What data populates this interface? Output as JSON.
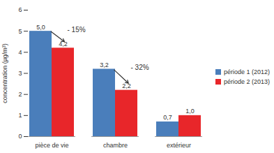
{
  "chart_data": {
    "type": "bar",
    "y_label": "concentration (µg/m³)",
    "categories": [
      "pièce de vie",
      "chambre",
      "extérieur"
    ],
    "series": [
      {
        "name": "période 1 (2012)",
        "color": "#4a7ebb",
        "values": [
          5.0,
          3.2,
          0.7
        ],
        "value_labels": [
          "5,0",
          "3,2",
          "0,7"
        ]
      },
      {
        "name": "période 2 (2013)",
        "color": "#e8262a",
        "values": [
          4.2,
          2.2,
          1.0
        ],
        "value_labels": [
          "4,2",
          "2,2",
          "1,0"
        ]
      }
    ],
    "ylim": [
      0,
      6
    ],
    "yticks": [
      0,
      1,
      2,
      3,
      4,
      5,
      6
    ],
    "data_labels": true,
    "legend": "right",
    "grid": false,
    "annotations": [
      {
        "category": "pièce de vie",
        "text": "- 15%"
      },
      {
        "category": "chambre",
        "text": "- 32%"
      }
    ]
  }
}
